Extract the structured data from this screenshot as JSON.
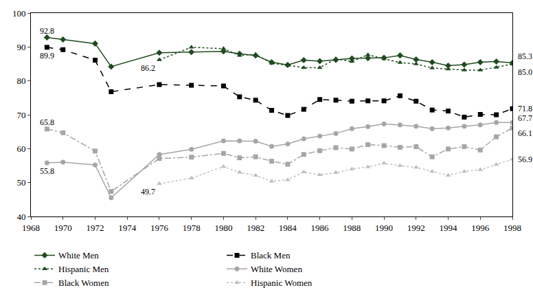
{
  "chart_data": {
    "type": "line",
    "x": [
      1969,
      1970,
      1972,
      1973,
      1976,
      1978,
      1980,
      1981,
      1982,
      1983,
      1984,
      1985,
      1986,
      1987,
      1988,
      1989,
      1990,
      1991,
      1992,
      1993,
      1994,
      1995,
      1996,
      1997,
      1998
    ],
    "xlim": [
      1968,
      1998
    ],
    "xticks": [
      1968,
      1970,
      1972,
      1974,
      1976,
      1978,
      1980,
      1982,
      1984,
      1986,
      1988,
      1990,
      1992,
      1994,
      1996,
      1998
    ],
    "ylim": [
      40,
      100
    ],
    "yticks": [
      40,
      50,
      60,
      70,
      80,
      90,
      100
    ],
    "grid": false,
    "legend": "bottom",
    "series": [
      {
        "name": "White Men",
        "color": "#1f4a1f",
        "marker": "diamond",
        "line_style": "solid",
        "values": [
          92.8,
          92.2,
          91.0,
          84.2,
          88.3,
          88.5,
          88.7,
          88.0,
          87.5,
          85.5,
          84.7,
          86.1,
          85.8,
          86.2,
          86.6,
          86.7,
          86.8,
          87.5,
          86.3,
          85.5,
          84.5,
          84.8,
          85.5,
          85.7,
          85.3
        ]
      },
      {
        "name": "Black Men",
        "color": "#000000",
        "marker": "square",
        "line_style": "dash",
        "values": [
          89.9,
          89.2,
          86.1,
          76.8,
          78.9,
          78.7,
          78.5,
          75.3,
          74.3,
          71.3,
          69.8,
          71.6,
          74.5,
          74.3,
          74.0,
          74.1,
          74.1,
          75.6,
          74.0,
          71.4,
          71.1,
          69.3,
          70.1,
          70.0,
          71.8
        ]
      },
      {
        "name": "Hispanic Men",
        "color": "#1f4a1f",
        "marker": "triangle-up",
        "line_style": "dot",
        "values": [
          null,
          null,
          null,
          null,
          86.2,
          89.9,
          89.5,
          87.5,
          87.8,
          85.2,
          84.6,
          83.9,
          83.9,
          86.5,
          85.7,
          87.7,
          86.5,
          85.4,
          85.0,
          83.8,
          83.5,
          83.2,
          83.2,
          84.0,
          85.0
        ]
      },
      {
        "name": "White Women",
        "color": "#a6a6a6",
        "marker": "circle",
        "line_style": "solid",
        "values": [
          55.8,
          56.0,
          55.2,
          45.5,
          58.3,
          59.8,
          62.3,
          62.3,
          62.2,
          60.7,
          61.4,
          62.9,
          63.7,
          64.5,
          65.9,
          66.5,
          67.3,
          67.0,
          66.6,
          65.9,
          66.1,
          66.6,
          67.0,
          67.7,
          67.7
        ]
      },
      {
        "name": "Black Women",
        "color": "#a6a6a6",
        "marker": "square",
        "line_style": "dashdot",
        "values": [
          65.8,
          64.7,
          59.3,
          47.4,
          57.1,
          57.5,
          58.6,
          57.3,
          57.6,
          56.3,
          55.4,
          58.3,
          59.4,
          60.3,
          59.9,
          61.2,
          60.9,
          60.4,
          60.6,
          57.6,
          59.9,
          60.6,
          59.6,
          63.5,
          66.1
        ]
      },
      {
        "name": "Hispanic Women",
        "color": "#bfbfbf",
        "marker": "triangle-up",
        "line_style": "dot",
        "values": [
          null,
          null,
          null,
          null,
          49.7,
          51.3,
          54.7,
          53.0,
          52.1,
          50.4,
          50.8,
          53.1,
          52.3,
          52.9,
          54.0,
          54.6,
          55.7,
          55.0,
          54.5,
          53.3,
          52.1,
          53.3,
          53.8,
          55.3,
          56.9
        ]
      }
    ],
    "annotations": [
      {
        "x": 1969,
        "y": 92.8,
        "text": "92.8"
      },
      {
        "x": 1969,
        "y": 89.9,
        "text": "89.9"
      },
      {
        "x": 1976,
        "y": 86.2,
        "text": "86.2"
      },
      {
        "x": 1998,
        "y": 85.3,
        "text": "85.3"
      },
      {
        "x": 1998,
        "y": 85.0,
        "text": "85.0"
      },
      {
        "x": 1969,
        "y": 65.8,
        "text": "65.8"
      },
      {
        "x": 1969,
        "y": 55.8,
        "text": "55.8"
      },
      {
        "x": 1976,
        "y": 49.7,
        "text": "49.7"
      },
      {
        "x": 1998,
        "y": 71.8,
        "text": "71.8"
      },
      {
        "x": 1998,
        "y": 67.7,
        "text": "67.7"
      },
      {
        "x": 1998,
        "y": 66.1,
        "text": "66.1"
      },
      {
        "x": 1998,
        "y": 56.9,
        "text": "56.9"
      }
    ]
  }
}
